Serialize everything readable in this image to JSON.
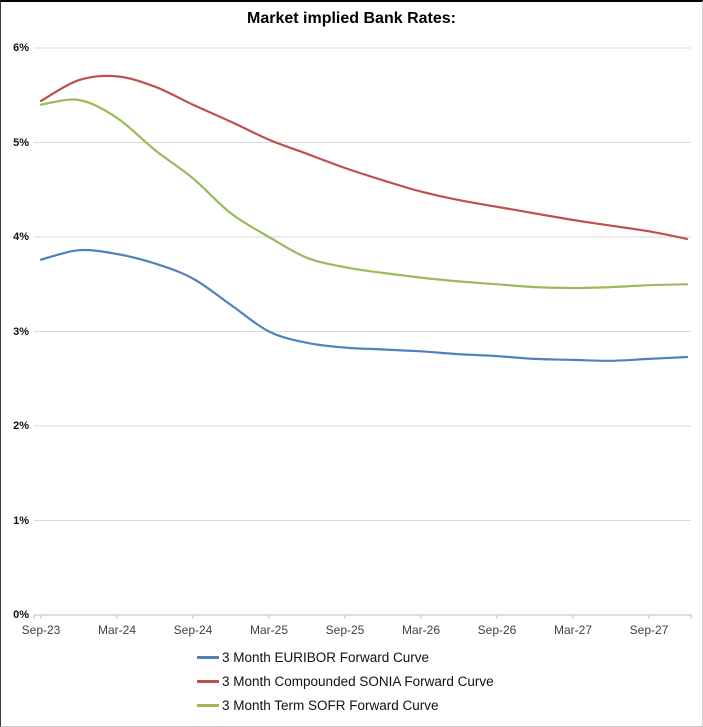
{
  "chart_data": {
    "type": "line",
    "title": "Market implied Bank Rates:",
    "xlabel": "",
    "ylabel": "",
    "ylim": [
      0,
      6
    ],
    "y_tick_format": "percent",
    "y_ticks": [
      "0%",
      "1%",
      "2%",
      "3%",
      "4%",
      "5%",
      "6%"
    ],
    "grid": "horizontal",
    "legend_position": "bottom-left",
    "x": [
      "Sep-23",
      "Dec-23",
      "Mar-24",
      "Jun-24",
      "Sep-24",
      "Dec-24",
      "Mar-25",
      "Jun-25",
      "Sep-25",
      "Dec-25",
      "Mar-26",
      "Jun-26",
      "Sep-26",
      "Dec-26",
      "Mar-27",
      "Jun-27",
      "Sep-27",
      "Dec-27"
    ],
    "x_axis_tick_labels": [
      "Sep-23",
      "Mar-24",
      "Sep-24",
      "Mar-25",
      "Sep-25",
      "Mar-26",
      "Sep-26",
      "Mar-27",
      "Sep-27"
    ],
    "series": [
      {
        "name": "3 Month EURIBOR Forward Curve",
        "color": "#4F81BD",
        "values": [
          3.76,
          3.86,
          3.82,
          3.72,
          3.56,
          3.28,
          3.0,
          2.88,
          2.83,
          2.81,
          2.79,
          2.76,
          2.74,
          2.71,
          2.7,
          2.69,
          2.71,
          2.73
        ]
      },
      {
        "name": "3 Month Compounded SONIA Forward Curve",
        "color": "#C0504D",
        "values": [
          5.44,
          5.66,
          5.7,
          5.59,
          5.4,
          5.22,
          5.03,
          4.88,
          4.73,
          4.6,
          4.48,
          4.39,
          4.32,
          4.25,
          4.18,
          4.12,
          4.06,
          3.98
        ]
      },
      {
        "name": "3 Month Term SOFR Forward Curve",
        "color": "#9BBB59",
        "values": [
          5.4,
          5.45,
          5.26,
          4.92,
          4.62,
          4.25,
          4.0,
          3.78,
          3.68,
          3.62,
          3.57,
          3.53,
          3.5,
          3.47,
          3.46,
          3.47,
          3.49,
          3.5
        ]
      }
    ]
  },
  "colors": {
    "gridline": "#D9D9D9",
    "axis_line": "#BFBFBF",
    "tick_mark": "#BFBFBF"
  }
}
